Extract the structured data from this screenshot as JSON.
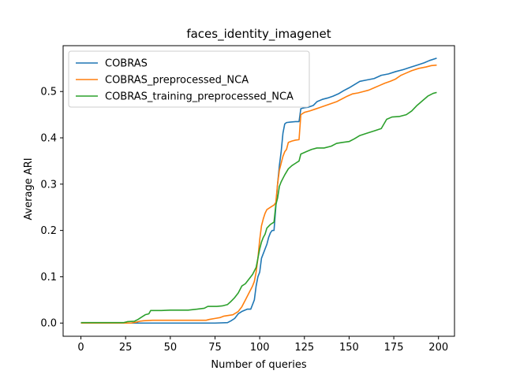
{
  "chart_data": {
    "type": "line",
    "title": "faces_identity_imagenet",
    "xlabel": "Number of queries",
    "ylabel": "Average ARI",
    "xlim": [
      -9.95,
      208.95
    ],
    "ylim": [
      -0.0285,
      0.599
    ],
    "xticks": [
      0,
      25,
      50,
      75,
      100,
      125,
      150,
      175,
      200
    ],
    "yticks": [
      0.0,
      0.1,
      0.2,
      0.3,
      0.4,
      0.5
    ],
    "ytick_labels": [
      "0.0",
      "0.1",
      "0.2",
      "0.3",
      "0.4",
      "0.5"
    ],
    "grid": false,
    "legend_position": "upper-left",
    "series": [
      {
        "name": "COBRAS",
        "color": "#1f77b4",
        "points": [
          [
            0,
            0
          ],
          [
            20,
            0
          ],
          [
            40,
            0
          ],
          [
            60,
            0
          ],
          [
            75,
            0
          ],
          [
            82,
            0.001
          ],
          [
            84,
            0.005
          ],
          [
            86,
            0.01
          ],
          [
            88,
            0.02
          ],
          [
            90,
            0.025
          ],
          [
            93,
            0.03
          ],
          [
            95,
            0.03
          ],
          [
            97,
            0.05
          ],
          [
            98,
            0.08
          ],
          [
            99,
            0.1
          ],
          [
            100,
            0.11
          ],
          [
            101,
            0.14
          ],
          [
            102,
            0.15
          ],
          [
            104,
            0.17
          ],
          [
            105,
            0.185
          ],
          [
            106,
            0.195
          ],
          [
            107,
            0.2
          ],
          [
            108,
            0.2
          ],
          [
            109,
            0.25
          ],
          [
            110,
            0.3
          ],
          [
            111,
            0.34
          ],
          [
            112,
            0.37
          ],
          [
            113,
            0.41
          ],
          [
            114,
            0.43
          ],
          [
            115,
            0.433
          ],
          [
            117,
            0.434
          ],
          [
            120,
            0.435
          ],
          [
            122,
            0.435
          ],
          [
            123,
            0.463
          ],
          [
            125,
            0.465
          ],
          [
            127,
            0.466
          ],
          [
            130,
            0.47
          ],
          [
            132,
            0.478
          ],
          [
            135,
            0.483
          ],
          [
            138,
            0.486
          ],
          [
            141,
            0.49
          ],
          [
            144,
            0.495
          ],
          [
            147,
            0.502
          ],
          [
            150,
            0.508
          ],
          [
            153,
            0.515
          ],
          [
            156,
            0.522
          ],
          [
            160,
            0.525
          ],
          [
            164,
            0.528
          ],
          [
            168,
            0.535
          ],
          [
            172,
            0.538
          ],
          [
            176,
            0.543
          ],
          [
            180,
            0.547
          ],
          [
            184,
            0.552
          ],
          [
            188,
            0.557
          ],
          [
            192,
            0.562
          ],
          [
            195,
            0.567
          ],
          [
            199,
            0.572
          ]
        ]
      },
      {
        "name": "COBRAS_preprocessed_NCA",
        "color": "#ff7f0e",
        "points": [
          [
            0,
            0
          ],
          [
            20,
            0
          ],
          [
            28,
            0
          ],
          [
            31,
            0.002
          ],
          [
            33,
            0.004
          ],
          [
            35,
            0.005
          ],
          [
            40,
            0.006
          ],
          [
            50,
            0.006
          ],
          [
            60,
            0.006
          ],
          [
            70,
            0.006
          ],
          [
            72,
            0.008
          ],
          [
            75,
            0.01
          ],
          [
            78,
            0.012
          ],
          [
            80,
            0.015
          ],
          [
            85,
            0.018
          ],
          [
            88,
            0.025
          ],
          [
            90,
            0.035
          ],
          [
            92,
            0.05
          ],
          [
            94,
            0.065
          ],
          [
            96,
            0.08
          ],
          [
            97,
            0.09
          ],
          [
            98,
            0.11
          ],
          [
            99,
            0.14
          ],
          [
            100,
            0.18
          ],
          [
            101,
            0.21
          ],
          [
            102,
            0.225
          ],
          [
            103,
            0.237
          ],
          [
            104,
            0.245
          ],
          [
            106,
            0.25
          ],
          [
            108,
            0.255
          ],
          [
            109,
            0.26
          ],
          [
            110,
            0.3
          ],
          [
            111,
            0.33
          ],
          [
            112,
            0.345
          ],
          [
            113,
            0.36
          ],
          [
            114,
            0.37
          ],
          [
            115,
            0.375
          ],
          [
            116,
            0.39
          ],
          [
            118,
            0.393
          ],
          [
            120,
            0.395
          ],
          [
            122,
            0.396
          ],
          [
            123,
            0.45
          ],
          [
            125,
            0.455
          ],
          [
            128,
            0.458
          ],
          [
            131,
            0.462
          ],
          [
            134,
            0.466
          ],
          [
            137,
            0.47
          ],
          [
            140,
            0.474
          ],
          [
            143,
            0.478
          ],
          [
            146,
            0.484
          ],
          [
            149,
            0.49
          ],
          [
            152,
            0.495
          ],
          [
            155,
            0.497
          ],
          [
            158,
            0.5
          ],
          [
            161,
            0.503
          ],
          [
            164,
            0.508
          ],
          [
            167,
            0.513
          ],
          [
            170,
            0.518
          ],
          [
            173,
            0.522
          ],
          [
            176,
            0.527
          ],
          [
            179,
            0.535
          ],
          [
            182,
            0.54
          ],
          [
            185,
            0.545
          ],
          [
            189,
            0.55
          ],
          [
            193,
            0.553
          ],
          [
            196,
            0.556
          ],
          [
            199,
            0.557
          ]
        ]
      },
      {
        "name": "COBRAS_training_preprocessed_NCA",
        "color": "#2ca02c",
        "points": [
          [
            0,
            0.001
          ],
          [
            24,
            0.001
          ],
          [
            26,
            0.003
          ],
          [
            30,
            0.004
          ],
          [
            32,
            0.008
          ],
          [
            34,
            0.013
          ],
          [
            36,
            0.018
          ],
          [
            38,
            0.02
          ],
          [
            39,
            0.027
          ],
          [
            45,
            0.027
          ],
          [
            50,
            0.028
          ],
          [
            60,
            0.028
          ],
          [
            65,
            0.03
          ],
          [
            69,
            0.032
          ],
          [
            71,
            0.036
          ],
          [
            76,
            0.036
          ],
          [
            79,
            0.037
          ],
          [
            82,
            0.04
          ],
          [
            84,
            0.047
          ],
          [
            86,
            0.055
          ],
          [
            88,
            0.065
          ],
          [
            90,
            0.08
          ],
          [
            92,
            0.085
          ],
          [
            94,
            0.095
          ],
          [
            96,
            0.105
          ],
          [
            98,
            0.12
          ],
          [
            99,
            0.14
          ],
          [
            100,
            0.16
          ],
          [
            101,
            0.175
          ],
          [
            102,
            0.185
          ],
          [
            103,
            0.192
          ],
          [
            104,
            0.205
          ],
          [
            106,
            0.213
          ],
          [
            108,
            0.218
          ],
          [
            109,
            0.255
          ],
          [
            110,
            0.27
          ],
          [
            111,
            0.295
          ],
          [
            112,
            0.305
          ],
          [
            114,
            0.32
          ],
          [
            116,
            0.333
          ],
          [
            118,
            0.34
          ],
          [
            120,
            0.345
          ],
          [
            122,
            0.35
          ],
          [
            123,
            0.365
          ],
          [
            126,
            0.37
          ],
          [
            129,
            0.375
          ],
          [
            132,
            0.378
          ],
          [
            136,
            0.378
          ],
          [
            140,
            0.382
          ],
          [
            143,
            0.388
          ],
          [
            146,
            0.39
          ],
          [
            150,
            0.392
          ],
          [
            153,
            0.398
          ],
          [
            156,
            0.405
          ],
          [
            160,
            0.41
          ],
          [
            164,
            0.415
          ],
          [
            168,
            0.42
          ],
          [
            171,
            0.44
          ],
          [
            174,
            0.445
          ],
          [
            178,
            0.446
          ],
          [
            182,
            0.45
          ],
          [
            185,
            0.458
          ],
          [
            188,
            0.47
          ],
          [
            191,
            0.48
          ],
          [
            194,
            0.49
          ],
          [
            197,
            0.496
          ],
          [
            199,
            0.498
          ]
        ]
      }
    ]
  }
}
